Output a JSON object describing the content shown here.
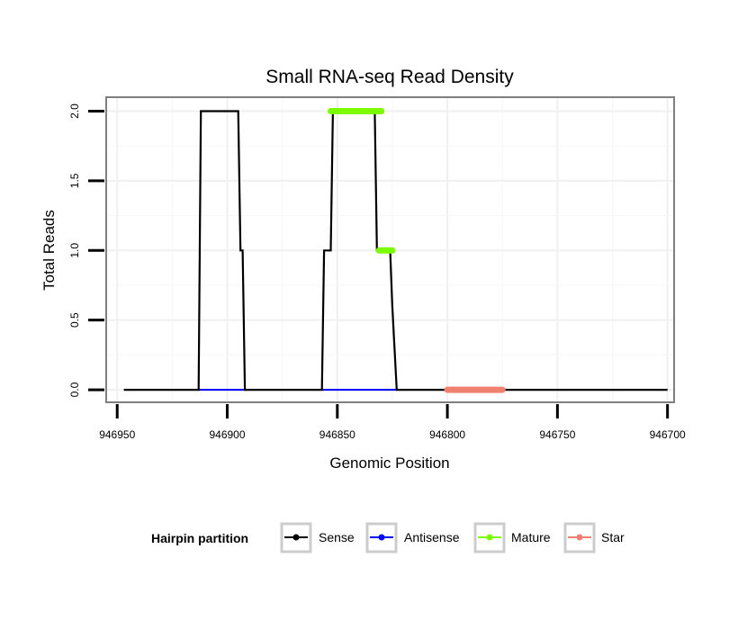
{
  "chart_data": {
    "type": "line",
    "title": "Small RNA-seq Read Density",
    "xlabel": "Genomic Position",
    "ylabel": "Total Reads",
    "xlim": [
      946955,
      946697
    ],
    "x_reversed": true,
    "ylim": [
      -0.09,
      2.1
    ],
    "xticks": [
      946950,
      946900,
      946850,
      946800,
      946750,
      946700
    ],
    "xtick_labels": [
      "946950",
      "946900",
      "946850",
      "946800",
      "946750",
      "946700"
    ],
    "yticks": [
      0.0,
      0.5,
      1.0,
      1.5,
      2.0
    ],
    "ytick_labels": [
      "0.0",
      "0.5",
      "1.0",
      "1.5",
      "2.0"
    ],
    "grid": true,
    "legend": {
      "title": "Hairpin partition",
      "position": "bottom",
      "entries": [
        {
          "name": "Sense",
          "color": "#000000"
        },
        {
          "name": "Antisense",
          "color": "#0000ff"
        },
        {
          "name": "Mature",
          "color": "#7cfc00"
        },
        {
          "name": "Star",
          "color": "#f08070"
        }
      ]
    },
    "series": [
      {
        "name": "Sense",
        "color": "#000000",
        "x": [
          946947,
          946913,
          946912,
          946895,
          946894,
          946893,
          946892,
          946891,
          946857,
          946856,
          946853,
          946852,
          946833,
          946832,
          946831,
          946830,
          946826,
          946825,
          946823,
          946822,
          946700
        ],
        "y": [
          0,
          0,
          2,
          2,
          1,
          1,
          0,
          0,
          0,
          1,
          1,
          2,
          2,
          1,
          1,
          1,
          1,
          0.6,
          0,
          0,
          0
        ]
      },
      {
        "name": "Antisense",
        "color": "#0000ff",
        "x": [
          946913,
          946891,
          946857,
          946823
        ],
        "y": [
          0,
          0,
          0,
          0
        ],
        "segments": [
          [
            946913,
            946891
          ],
          [
            946857,
            946823
          ]
        ]
      },
      {
        "name": "Mature",
        "color": "#7cfc00",
        "segments": [
          {
            "x0": 946853,
            "x1": 946830,
            "y": 2
          },
          {
            "x0": 946831,
            "x1": 946825,
            "y": 1
          }
        ]
      },
      {
        "name": "Star",
        "color": "#f08070",
        "segments": [
          {
            "x0": 946800,
            "x1": 946775,
            "y": 0
          }
        ]
      }
    ]
  }
}
